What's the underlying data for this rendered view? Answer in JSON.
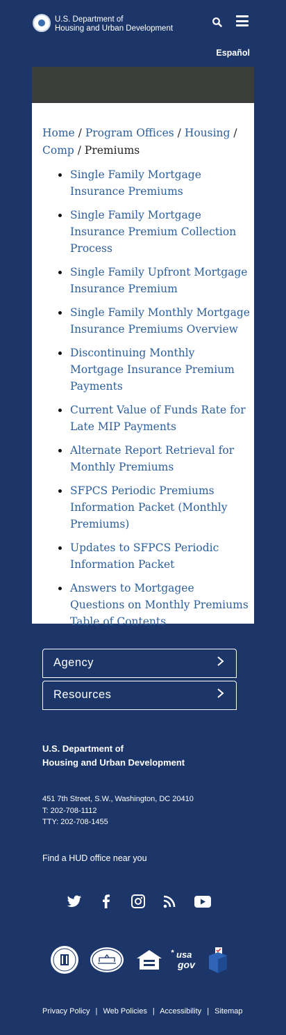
{
  "header": {
    "agency_line1": "U.S. Department of",
    "agency_line2": "Housing and Urban Development",
    "language_link": "Español"
  },
  "breadcrumb": {
    "items": [
      "Home",
      "Program Offices",
      "Housing",
      "Comp"
    ],
    "separator": "/",
    "current": "Premiums"
  },
  "links": [
    "Single Family Mortgage Insurance Premiums",
    "Single Family Mortgage Insurance Premium Collection Process",
    "Single Family Upfront Mortgage Insurance Premium",
    "Single Family Monthly Mortgage Insurance Premiums Overview",
    "Discontinuing Monthly Mortgage Insurance Premium Payments",
    "Current Value of Funds Rate for Late MIP Payments",
    "Alternate Report Retrieval for Monthly Premiums",
    "SFPCS Periodic Premiums Information Packet (Monthly Premiums)",
    "Updates to SFPCS Periodic Information Packet",
    "Answers to Mortgagee Questions on Monthly Premiums Table of Contents"
  ],
  "accordions": {
    "agency": "Agency",
    "resources": "Resources"
  },
  "footer": {
    "agency_line1": "U.S. Department of",
    "agency_line2": "Housing and Urban Development",
    "address": "451 7th Street, S.W., Washington, DC 20410",
    "phone": "T: 202-708-1112",
    "tty": "TTY: 202-708-1455",
    "find_office": "Find a HUD office near you",
    "usagov_text_1": "usa",
    "usagov_text_2": "gov",
    "links": [
      "Privacy Policy",
      "Web Policies",
      "Accessibility",
      "Sitemap"
    ],
    "separator": "|"
  },
  "icons": {
    "social": [
      "twitter-icon",
      "facebook-icon",
      "instagram-icon",
      "rss-icon",
      "youtube-icon"
    ],
    "logos": [
      "hud-seal-logo",
      "white-house-logo",
      "equal-housing-logo",
      "usagov-logo",
      "vote-logo"
    ]
  },
  "colors": {
    "background": "#1c3669",
    "link": "#2c5f9e",
    "banner": "#3b3d3a"
  }
}
